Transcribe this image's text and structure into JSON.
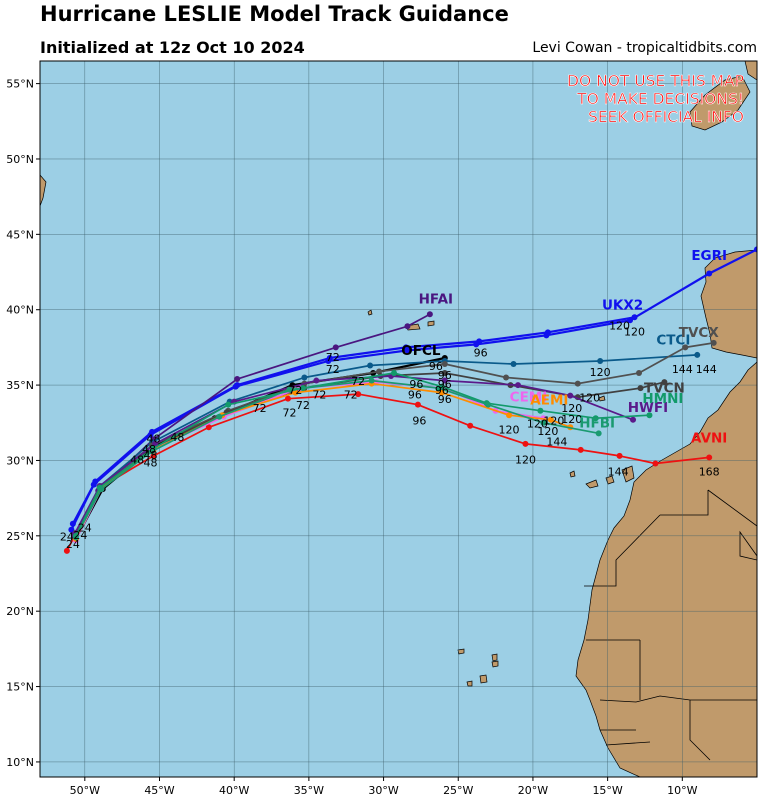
{
  "header": {
    "title": "Hurricane LESLIE Model Track Guidance",
    "subtitle": "Initialized at 12z Oct 10 2024",
    "credit": "Levi Cowan - tropicaltidbits.com"
  },
  "warning": [
    "DO NOT USE THIS MAP",
    "TO MAKE DECISIONS!",
    "SEEK OFFICIAL INFO"
  ],
  "colors": {
    "ocean": "#9ccfe5",
    "land": "#c09a6b",
    "warning": "#ff0000"
  },
  "chart_data": {
    "type": "map-tracks",
    "lon_range": [
      -53,
      -5
    ],
    "lat_range": [
      9,
      56.5
    ],
    "lon_ticks": [
      -50,
      -45,
      -40,
      -35,
      -30,
      -25,
      -20,
      -15,
      -10
    ],
    "lon_tick_labels": [
      "50°W",
      "45°W",
      "40°W",
      "35°W",
      "30°W",
      "25°W",
      "20°W",
      "15°W",
      "10°W"
    ],
    "lat_ticks": [
      10,
      15,
      20,
      25,
      30,
      35,
      40,
      45,
      50,
      55
    ],
    "lat_tick_labels": [
      "10°N",
      "15°N",
      "20°N",
      "25°N",
      "30°N",
      "35°N",
      "40°N",
      "45°N",
      "50°N",
      "55°N"
    ],
    "series": [
      {
        "name": "AVNI",
        "color": "#ee1111",
        "label_pos": [
          -8.2,
          31.2
        ],
        "points": [
          [
            -51.2,
            24.0
          ],
          [
            -49.0,
            28.2
          ],
          [
            -45.4,
            30.3
          ],
          [
            -41.7,
            32.2
          ],
          [
            -36.4,
            34.1
          ],
          [
            -31.7,
            34.4
          ],
          [
            -27.7,
            33.7
          ],
          [
            -24.2,
            32.3
          ],
          [
            -20.5,
            31.1
          ],
          [
            -16.8,
            30.7
          ],
          [
            -14.2,
            30.3
          ],
          [
            -11.8,
            29.8
          ],
          [
            -8.2,
            30.2
          ]
        ],
        "hour_labels": [
          [
            "96",
            -27.6,
            32.4
          ],
          [
            "120",
            -20.5,
            29.8
          ],
          [
            "144",
            -14.3,
            29.0
          ],
          [
            "168",
            -8.2,
            29.0
          ]
        ]
      },
      {
        "name": "UKX2",
        "color": "#1111ee",
        "label_pos": [
          -14.0,
          40.0
        ],
        "points": [
          [
            -50.8,
            25.8
          ],
          [
            -49.3,
            28.6
          ],
          [
            -45.5,
            31.9
          ],
          [
            -39.8,
            35.0
          ],
          [
            -33.6,
            36.8
          ],
          [
            -28.5,
            37.5
          ],
          [
            -23.6,
            37.9
          ],
          [
            -19.0,
            38.5
          ],
          [
            -13.2,
            39.5
          ]
        ],
        "hour_labels": [
          [
            "96",
            -23.5,
            36.9
          ],
          [
            "120",
            -13.2,
            38.3
          ]
        ]
      },
      {
        "name": "EGRI",
        "color": "#1111ee",
        "label_pos": [
          -8.2,
          43.3
        ],
        "points": [
          [
            -50.9,
            25.4
          ],
          [
            -49.4,
            28.4
          ],
          [
            -45.6,
            31.7
          ],
          [
            -39.9,
            34.9
          ],
          [
            -33.7,
            36.6
          ],
          [
            -28.4,
            37.3
          ],
          [
            -23.8,
            37.7
          ],
          [
            -19.1,
            38.3
          ],
          [
            -13.5,
            39.3
          ],
          [
            -8.2,
            42.4
          ],
          [
            -5.0,
            44.0
          ]
        ],
        "hour_labels": [
          [
            "120",
            -14.2,
            38.7
          ]
        ]
      },
      {
        "name": "HFAI",
        "color": "#4a1680",
        "label_pos": [
          -26.5,
          40.4
        ],
        "points": [
          [
            -50.7,
            25.0
          ],
          [
            -49.1,
            28.0
          ],
          [
            -45.4,
            31.4
          ],
          [
            -39.8,
            35.4
          ],
          [
            -33.2,
            37.5
          ],
          [
            -28.4,
            38.9
          ],
          [
            -26.9,
            39.7
          ]
        ],
        "hour_labels": [
          [
            "72",
            -33.4,
            36.6
          ]
        ]
      },
      {
        "name": "OFCL",
        "color": "#000000",
        "label_pos": [
          -27.5,
          37.0
        ],
        "points": [
          [
            -50.6,
            24.8
          ],
          [
            -48.8,
            28.1
          ],
          [
            -45.4,
            30.9
          ],
          [
            -41.3,
            32.8
          ],
          [
            -36.1,
            35.0
          ],
          [
            -30.7,
            35.8
          ],
          [
            -25.9,
            36.8
          ]
        ],
        "hour_labels": [
          [
            "72",
            -33.4,
            35.8
          ]
        ]
      },
      {
        "name": "CTCI",
        "color": "#0a5a8a",
        "label_pos": [
          -10.6,
          37.7
        ],
        "points": [
          [
            -50.6,
            25.0
          ],
          [
            -49.0,
            28.3
          ],
          [
            -45.5,
            31.2
          ],
          [
            -40.3,
            33.9
          ],
          [
            -35.3,
            35.5
          ],
          [
            -30.9,
            36.3
          ],
          [
            -25.9,
            36.6
          ],
          [
            -21.3,
            36.4
          ],
          [
            -15.5,
            36.6
          ],
          [
            -9.0,
            37.0
          ]
        ],
        "hour_labels": [
          [
            "120",
            -15.5,
            35.6
          ],
          [
            "144",
            -10.0,
            35.8
          ]
        ]
      },
      {
        "name": "TVCX",
        "color": "#505050",
        "label_pos": [
          -8.9,
          38.2
        ],
        "points": [
          [
            -50.6,
            25.2
          ],
          [
            -48.9,
            28.3
          ],
          [
            -45.5,
            31.0
          ],
          [
            -40.4,
            33.3
          ],
          [
            -35.3,
            35.1
          ],
          [
            -30.3,
            35.9
          ],
          [
            -25.9,
            36.4
          ],
          [
            -21.8,
            35.5
          ],
          [
            -17.0,
            35.1
          ],
          [
            -12.9,
            35.8
          ],
          [
            -9.8,
            37.5
          ],
          [
            -7.9,
            37.8
          ]
        ],
        "hour_labels": [
          [
            "144",
            -8.4,
            35.8
          ]
        ]
      },
      {
        "name": "TVCN",
        "color": "#404040",
        "label_pos": [
          -11.2,
          34.5
        ],
        "points": [
          [
            -50.6,
            25.0
          ],
          [
            -48.9,
            28.2
          ],
          [
            -45.5,
            30.8
          ],
          [
            -40.5,
            33.2
          ],
          [
            -35.3,
            34.8
          ],
          [
            -30.2,
            35.6
          ],
          [
            -25.9,
            35.8
          ],
          [
            -21.5,
            35.0
          ],
          [
            -17.0,
            34.2
          ],
          [
            -12.8,
            34.8
          ],
          [
            -11.2,
            35.2
          ]
        ],
        "hour_labels": [
          [
            "120",
            -16.2,
            33.9
          ]
        ]
      },
      {
        "name": "CEMI",
        "color": "#ee66ee",
        "label_pos": [
          -20.3,
          33.9
        ],
        "points": [
          [
            -50.6,
            24.7
          ],
          [
            -48.9,
            28.1
          ],
          [
            -45.5,
            30.7
          ],
          [
            -40.7,
            32.9
          ],
          [
            -35.6,
            34.8
          ],
          [
            -30.5,
            35.2
          ],
          [
            -26.0,
            34.8
          ],
          [
            -22.5,
            33.3
          ],
          [
            -19.3,
            32.8
          ]
        ],
        "hour_labels": [
          [
            "120",
            -19.0,
            31.7
          ]
        ]
      },
      {
        "name": "AEMI",
        "color": "#ff8c00",
        "label_pos": [
          -18.9,
          33.7
        ],
        "points": [
          [
            -50.6,
            24.8
          ],
          [
            -48.9,
            28.2
          ],
          [
            -45.4,
            30.7
          ],
          [
            -40.8,
            33.0
          ],
          [
            -35.9,
            34.5
          ],
          [
            -30.8,
            35.1
          ],
          [
            -26.1,
            34.5
          ],
          [
            -21.6,
            33.0
          ],
          [
            -18.8,
            32.7
          ],
          [
            -17.5,
            32.2
          ]
        ],
        "hour_labels": [
          [
            "120",
            -21.6,
            31.8
          ],
          [
            "120",
            -17.4,
            32.5
          ]
        ]
      },
      {
        "name": "HWFI",
        "color": "#5a1a8a",
        "label_pos": [
          -12.3,
          33.2
        ],
        "points": [
          [
            -50.7,
            25.1
          ],
          [
            -49.0,
            28.3
          ],
          [
            -45.3,
            31.1
          ],
          [
            -40.0,
            33.9
          ],
          [
            -34.5,
            35.3
          ],
          [
            -29.5,
            35.6
          ],
          [
            -25.9,
            35.3
          ],
          [
            -21.0,
            35.0
          ],
          [
            -17.5,
            34.3
          ],
          [
            -13.3,
            32.7
          ]
        ],
        "hour_labels": [
          [
            "96",
            -27.9,
            34.1
          ]
        ]
      },
      {
        "name": "HMNI",
        "color": "#129a6a",
        "label_pos": [
          -11.3,
          33.8
        ],
        "points": [
          [
            -50.6,
            25.0
          ],
          [
            -49.0,
            28.2
          ],
          [
            -45.4,
            30.8
          ],
          [
            -40.4,
            33.7
          ],
          [
            -35.4,
            34.8
          ],
          [
            -29.3,
            35.8
          ],
          [
            -26.1,
            34.9
          ],
          [
            -23.1,
            33.8
          ],
          [
            -19.5,
            33.3
          ],
          [
            -15.8,
            32.8
          ],
          [
            -12.2,
            33.0
          ]
        ],
        "hour_labels": [
          [
            "120",
            -19.7,
            32.2
          ]
        ]
      },
      {
        "name": "HFBI",
        "color": "#1a9a70",
        "label_pos": [
          -15.7,
          32.2
        ],
        "points": [
          [
            -50.6,
            24.9
          ],
          [
            -48.9,
            28.1
          ],
          [
            -45.5,
            30.6
          ],
          [
            -41.0,
            32.9
          ],
          [
            -36.3,
            34.7
          ],
          [
            -30.8,
            35.3
          ],
          [
            -26.3,
            34.8
          ],
          [
            -23.0,
            33.7
          ],
          [
            -19.3,
            32.5
          ],
          [
            -15.6,
            31.8
          ]
        ],
        "hour_labels": [
          [
            "144",
            -18.4,
            31.0
          ]
        ]
      }
    ],
    "extra_hour_labels": [
      [
        "24",
        -50.0,
        25.3
      ],
      [
        "24",
        -50.3,
        24.8
      ],
      [
        "24",
        -51.2,
        24.7
      ],
      [
        "24",
        -50.8,
        24.2
      ],
      [
        "48",
        -46.5,
        29.8
      ],
      [
        "48",
        -45.6,
        29.6
      ],
      [
        "48",
        -45.6,
        30.1
      ],
      [
        "48",
        -43.8,
        31.3
      ],
      [
        "48",
        -45.4,
        31.2
      ],
      [
        "48",
        -45.7,
        30.5
      ],
      [
        "72",
        -34.3,
        34.1
      ],
      [
        "72",
        -35.4,
        33.4
      ],
      [
        "72",
        -32.2,
        34.1
      ],
      [
        "72",
        -36.3,
        32.9
      ],
      [
        "72",
        -38.3,
        33.2
      ],
      [
        "72",
        -35.9,
        34.4
      ],
      [
        "72",
        -31.7,
        35.0
      ],
      [
        "96",
        -25.9,
        33.8
      ],
      [
        "96",
        -25.9,
        35.4
      ],
      [
        "96",
        -26.1,
        34.4
      ],
      [
        "96",
        -26.5,
        36.0
      ],
      [
        "96",
        -27.8,
        34.8
      ],
      [
        "96",
        -25.9,
        34.8
      ],
      [
        "120",
        -17.4,
        33.2
      ],
      [
        "120",
        -18.6,
        32.4
      ]
    ]
  }
}
